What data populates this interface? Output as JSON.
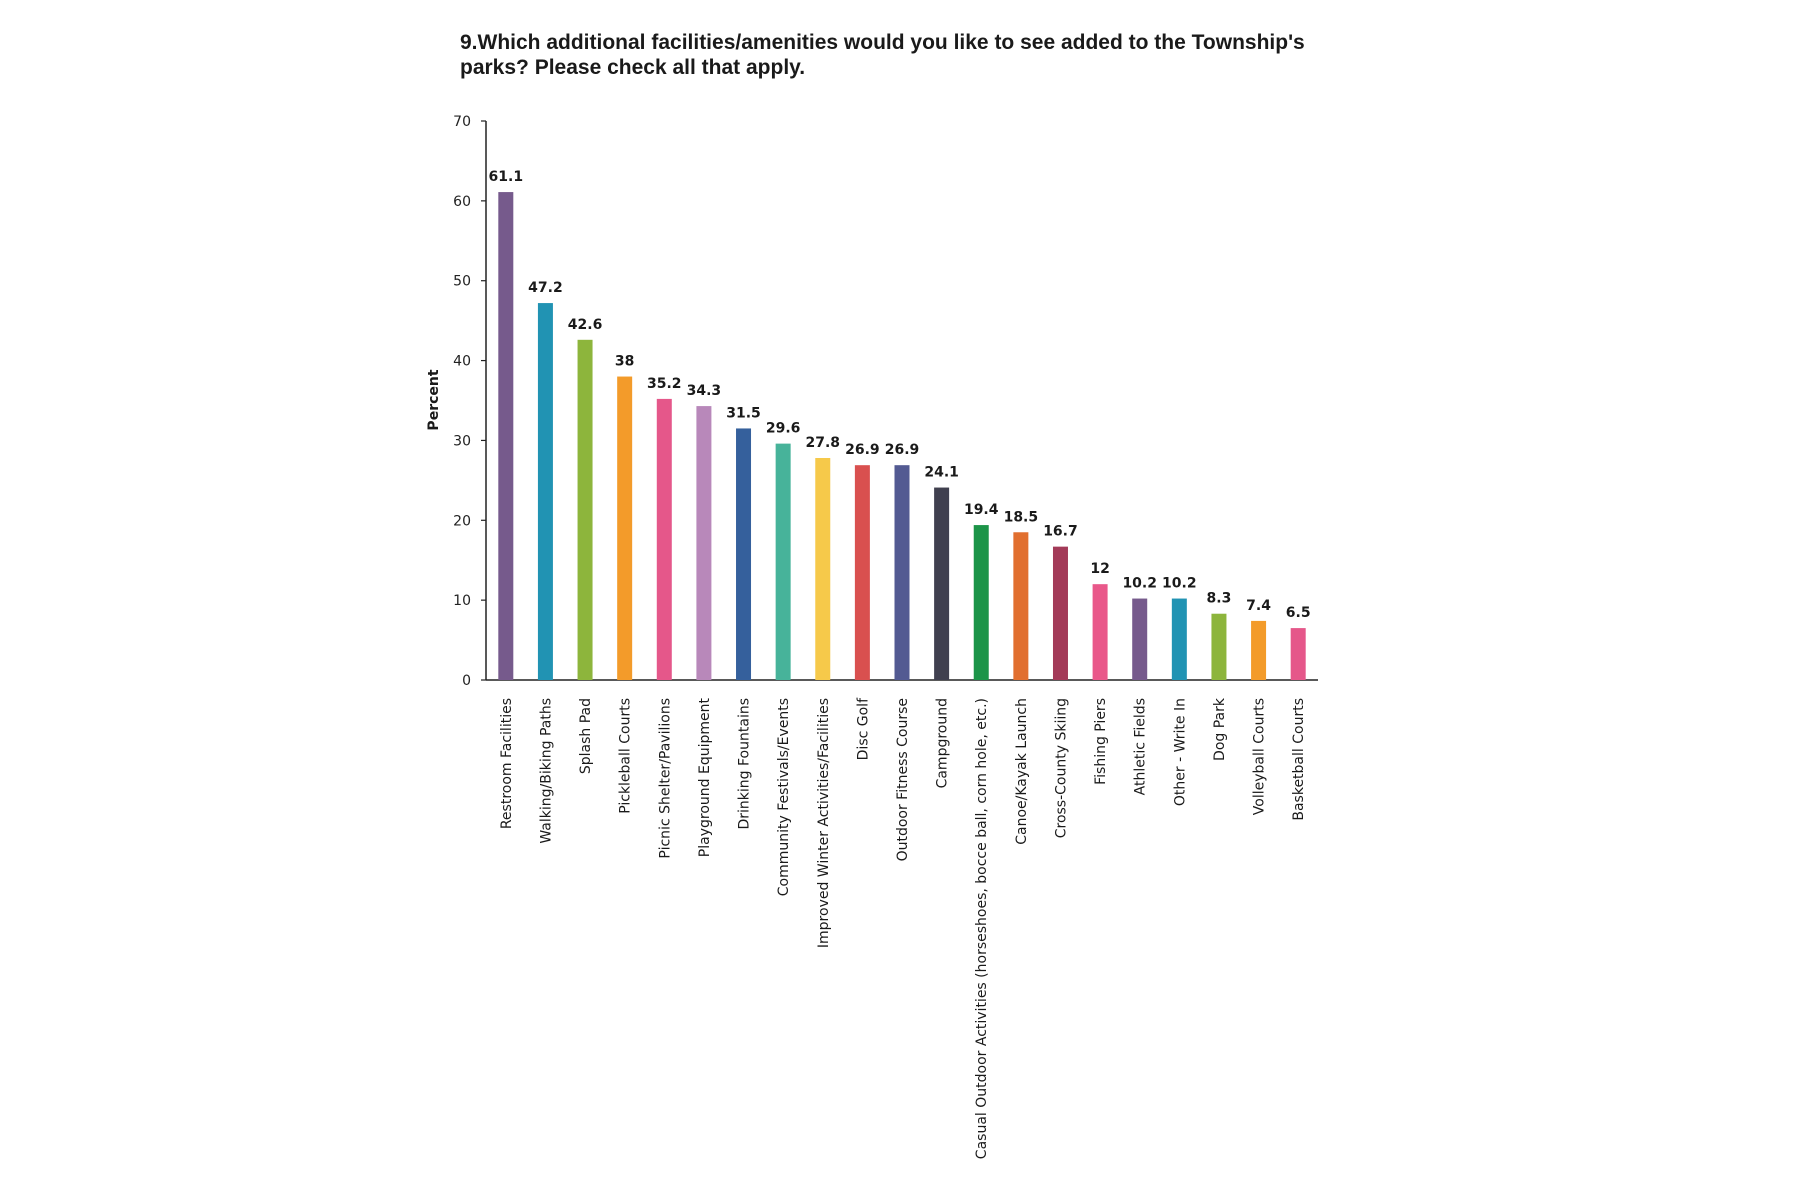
{
  "chart_data": {
    "type": "bar",
    "title": "9.Which additional facilities/amenities would you like to see added to the Township's parks? Please check all that apply.",
    "xlabel": "",
    "ylabel": "Percent",
    "ylim": [
      0,
      70
    ],
    "yticks": [
      0,
      10,
      20,
      30,
      40,
      50,
      60,
      70
    ],
    "grid": false,
    "legend": "none",
    "categories": [
      "Restroom Facilities",
      "Walking/Biking Paths",
      "Splash Pad",
      "Pickleball Courts",
      "Picnic Shelter/Pavilions",
      "Playground Equipment",
      "Drinking Fountains",
      "Community Festivals/Events",
      "Improved Winter Activities/Facilities",
      "Disc Golf",
      "Outdoor Fitness Course",
      "Campground",
      "Casual Outdoor Activities (horseshoes, bocce ball, corn hole, etc.)",
      "Canoe/Kayak Launch",
      "Cross-County Skiing",
      "Fishing Piers",
      "Athletic Fields",
      "Other - Write In",
      "Dog Park",
      "Volleyball Courts",
      "Basketball Courts"
    ],
    "values": [
      61.1,
      47.2,
      42.6,
      38,
      35.2,
      34.3,
      31.5,
      29.6,
      27.8,
      26.9,
      26.9,
      24.1,
      19.4,
      18.5,
      16.7,
      12,
      10.2,
      10.2,
      8.3,
      7.4,
      6.5
    ],
    "value_labels": [
      "61.1",
      "47.2",
      "42.6",
      "38",
      "35.2",
      "34.3",
      "31.5",
      "29.6",
      "27.8",
      "26.9",
      "26.9",
      "24.1",
      "19.4",
      "18.5",
      "16.7",
      "12",
      "10.2",
      "10.2",
      "8.3",
      "7.4",
      "6.5"
    ],
    "colors": [
      "#765a8c",
      "#2193b3",
      "#8db53c",
      "#f39b2a",
      "#e5578a",
      "#b888ba",
      "#35609c",
      "#47b39a",
      "#f6c94a",
      "#d9504f",
      "#535a92",
      "#40404f",
      "#1c9448",
      "#e16f2f",
      "#a33a58",
      "#e9588a",
      "#765a8c",
      "#2193b3",
      "#8db53c",
      "#f39b2a",
      "#e5578a"
    ]
  }
}
